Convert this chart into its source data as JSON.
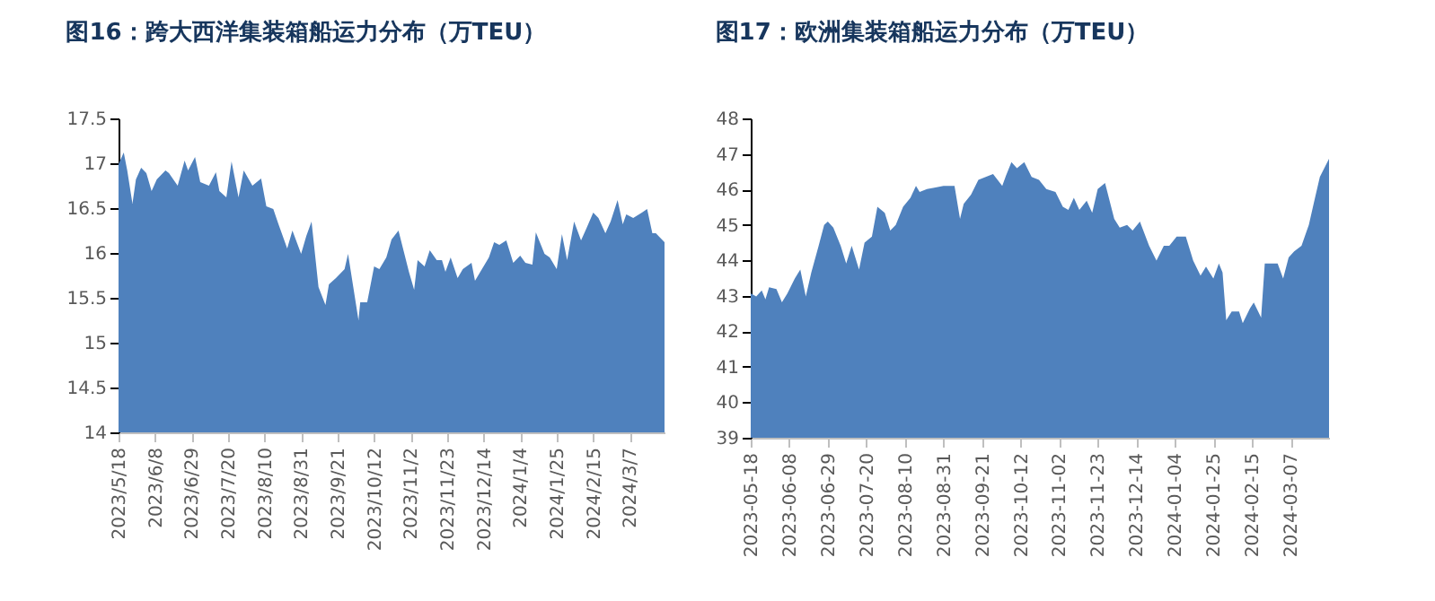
{
  "chart_data": [
    {
      "type": "area",
      "title": "图16：跨大西洋集装箱船运力分布（万TEU）",
      "color": "#4f81bd",
      "x": [
        "2023-05-18",
        "2023-05-21",
        "2023-05-23",
        "2023-05-26",
        "2023-05-28",
        "2023-05-31",
        "2023-06-03",
        "2023-06-06",
        "2023-06-09",
        "2023-06-14",
        "2023-06-16",
        "2023-06-21",
        "2023-06-25",
        "2023-06-27",
        "2023-07-01",
        "2023-07-04",
        "2023-07-09",
        "2023-07-13",
        "2023-07-15",
        "2023-07-19",
        "2023-07-22",
        "2023-07-26",
        "2023-07-29",
        "2023-08-03",
        "2023-08-08",
        "2023-08-11",
        "2023-08-15",
        "2023-08-18",
        "2023-08-23",
        "2023-08-26",
        "2023-08-31",
        "2023-09-03",
        "2023-09-06",
        "2023-09-10",
        "2023-09-14",
        "2023-09-16",
        "2023-09-20",
        "2023-09-25",
        "2023-09-27",
        "2023-09-30",
        "2023-10-03",
        "2023-10-04",
        "2023-10-08",
        "2023-10-12",
        "2023-10-15",
        "2023-10-19",
        "2023-10-22",
        "2023-10-26",
        "2023-10-29",
        "2023-11-01",
        "2023-11-04",
        "2023-11-06",
        "2023-11-10",
        "2023-11-13",
        "2023-11-17",
        "2023-11-20",
        "2023-11-22",
        "2023-11-25",
        "2023-11-29",
        "2023-12-02",
        "2023-12-07",
        "2023-12-09",
        "2023-12-13",
        "2023-12-17",
        "2023-12-20",
        "2023-12-23",
        "2023-12-27",
        "2023-12-31",
        "2024-01-04",
        "2024-01-07",
        "2024-01-11",
        "2024-01-13",
        "2024-01-18",
        "2024-01-21",
        "2024-01-25",
        "2024-01-28",
        "2024-01-31",
        "2024-02-04",
        "2024-02-08",
        "2024-02-11",
        "2024-02-15",
        "2024-02-18",
        "2024-02-22",
        "2024-02-25",
        "2024-02-29",
        "2024-03-03",
        "2024-03-05",
        "2024-03-09",
        "2024-03-14",
        "2024-03-17",
        "2024-03-20",
        "2024-03-22",
        "2024-03-27"
      ],
      "values": [
        16.99,
        17.12,
        16.92,
        16.55,
        16.82,
        16.95,
        16.89,
        16.69,
        16.82,
        16.92,
        16.89,
        16.75,
        17.03,
        16.92,
        17.07,
        16.79,
        16.75,
        16.9,
        16.69,
        16.62,
        17.02,
        16.62,
        16.92,
        16.75,
        16.83,
        16.52,
        16.49,
        16.32,
        16.05,
        16.25,
        15.99,
        16.19,
        16.35,
        15.62,
        15.42,
        15.65,
        15.72,
        15.82,
        15.99,
        15.62,
        15.25,
        15.45,
        15.45,
        15.85,
        15.82,
        15.95,
        16.15,
        16.25,
        16.02,
        15.79,
        15.59,
        15.92,
        15.85,
        16.03,
        15.92,
        15.92,
        15.79,
        15.95,
        15.72,
        15.82,
        15.89,
        15.69,
        15.82,
        15.95,
        16.12,
        16.09,
        16.14,
        15.89,
        15.97,
        15.89,
        15.87,
        16.23,
        15.99,
        15.95,
        15.82,
        16.21,
        15.92,
        16.35,
        16.14,
        16.27,
        16.45,
        16.39,
        16.22,
        16.35,
        16.59,
        16.32,
        16.43,
        16.39,
        16.45,
        16.49,
        16.22,
        16.22,
        16.12
      ],
      "xlim": [
        "2023-05-18",
        "2024-03-27"
      ],
      "xticks": [
        {
          "value": "2023-05-18",
          "label": "2023/5/18"
        },
        {
          "value": "2023-06-08",
          "label": "2023/6/8"
        },
        {
          "value": "2023-06-29",
          "label": "2023/6/29"
        },
        {
          "value": "2023-07-20",
          "label": "2023/7/20"
        },
        {
          "value": "2023-08-10",
          "label": "2023/8/10"
        },
        {
          "value": "2023-08-31",
          "label": "2023/8/31"
        },
        {
          "value": "2023-09-21",
          "label": "2023/9/21"
        },
        {
          "value": "2023-10-12",
          "label": "2023/10/12"
        },
        {
          "value": "2023-11-02",
          "label": "2023/11/2"
        },
        {
          "value": "2023-11-23",
          "label": "2023/11/23"
        },
        {
          "value": "2023-12-14",
          "label": "2023/12/14"
        },
        {
          "value": "2024-01-04",
          "label": "2024/1/4"
        },
        {
          "value": "2024-01-25",
          "label": "2024/1/25"
        },
        {
          "value": "2024-02-15",
          "label": "2024/2/15"
        },
        {
          "value": "2024-03-07",
          "label": "2024/3/7"
        }
      ],
      "ylim": [
        14,
        17.5
      ],
      "yticks": [
        14,
        14.5,
        15,
        15.5,
        16,
        16.5,
        17,
        17.5
      ],
      "grid": false
    },
    {
      "type": "area",
      "title": "图17：欧洲集装箱船运力分布（万TEU）",
      "color": "#4f81bd",
      "x": [
        "2023-05-18",
        "2023-05-21",
        "2023-05-24",
        "2023-05-26",
        "2023-05-28",
        "2023-06-01",
        "2023-06-04",
        "2023-06-07",
        "2023-06-11",
        "2023-06-14",
        "2023-06-17",
        "2023-06-20",
        "2023-06-24",
        "2023-06-27",
        "2023-06-29",
        "2023-07-02",
        "2023-07-06",
        "2023-07-09",
        "2023-07-12",
        "2023-07-16",
        "2023-07-19",
        "2023-07-23",
        "2023-07-26",
        "2023-07-30",
        "2023-08-02",
        "2023-08-05",
        "2023-08-09",
        "2023-08-13",
        "2023-08-16",
        "2023-08-18",
        "2023-08-22",
        "2023-08-26",
        "2023-08-31",
        "2023-09-06",
        "2023-09-09",
        "2023-09-11",
        "2023-09-15",
        "2023-09-19",
        "2023-09-23",
        "2023-09-27",
        "2023-10-02",
        "2023-10-04",
        "2023-10-07",
        "2023-10-10",
        "2023-10-14",
        "2023-10-18",
        "2023-10-22",
        "2023-10-26",
        "2023-10-31",
        "2023-11-04",
        "2023-11-07",
        "2023-11-10",
        "2023-11-13",
        "2023-11-17",
        "2023-11-20",
        "2023-11-23",
        "2023-11-27",
        "2023-12-02",
        "2023-12-05",
        "2023-12-09",
        "2023-12-12",
        "2023-12-16",
        "2023-12-21",
        "2023-12-25",
        "2023-12-29",
        "2024-01-01",
        "2024-01-05",
        "2024-01-10",
        "2024-01-14",
        "2024-01-18",
        "2024-01-21",
        "2024-01-25",
        "2024-01-28",
        "2024-01-30",
        "2024-02-01",
        "2024-02-04",
        "2024-02-08",
        "2024-02-10",
        "2024-02-14",
        "2024-02-16",
        "2024-02-20",
        "2024-02-22",
        "2024-02-25",
        "2024-02-29",
        "2024-03-03",
        "2024-03-06",
        "2024-03-09",
        "2024-03-13",
        "2024-03-17",
        "2024-03-20",
        "2024-03-23",
        "2024-03-28"
      ],
      "values": [
        43.07,
        42.98,
        43.15,
        42.9,
        43.24,
        43.19,
        42.82,
        43.07,
        43.49,
        43.74,
        42.98,
        43.66,
        44.41,
        45.0,
        45.09,
        44.92,
        44.41,
        43.91,
        44.41,
        43.74,
        44.5,
        44.67,
        45.51,
        45.34,
        44.84,
        45.0,
        45.51,
        45.76,
        46.1,
        45.93,
        46.01,
        46.05,
        46.1,
        46.1,
        45.17,
        45.59,
        45.85,
        46.27,
        46.35,
        46.43,
        46.1,
        46.38,
        46.77,
        46.6,
        46.77,
        46.35,
        46.27,
        46.01,
        45.93,
        45.51,
        45.42,
        45.76,
        45.42,
        45.68,
        45.34,
        46.01,
        46.18,
        45.17,
        44.92,
        45.0,
        44.84,
        45.09,
        44.41,
        43.99,
        44.41,
        44.41,
        44.67,
        44.67,
        43.99,
        43.57,
        43.82,
        43.49,
        43.91,
        43.66,
        42.31,
        42.56,
        42.56,
        42.23,
        42.65,
        42.81,
        42.39,
        43.91,
        43.91,
        43.91,
        43.49,
        44.08,
        44.25,
        44.41,
        45.0,
        45.68,
        46.35,
        46.86
      ],
      "xlim": [
        "2023-05-18",
        "2024-03-28"
      ],
      "xticks": [
        {
          "value": "2023-05-18",
          "label": "2023-05-18"
        },
        {
          "value": "2023-06-08",
          "label": "2023-06-08"
        },
        {
          "value": "2023-06-29",
          "label": "2023-06-29"
        },
        {
          "value": "2023-07-20",
          "label": "2023-07-20"
        },
        {
          "value": "2023-08-10",
          "label": "2023-08-10"
        },
        {
          "value": "2023-08-31",
          "label": "2023-08-31"
        },
        {
          "value": "2023-09-21",
          "label": "2023-09-21"
        },
        {
          "value": "2023-10-12",
          "label": "2023-10-12"
        },
        {
          "value": "2023-11-02",
          "label": "2023-11-02"
        },
        {
          "value": "2023-11-23",
          "label": "2023-11-23"
        },
        {
          "value": "2023-12-14",
          "label": "2023-12-14"
        },
        {
          "value": "2024-01-04",
          "label": "2024-01-04"
        },
        {
          "value": "2024-01-25",
          "label": "2024-01-25"
        },
        {
          "value": "2024-02-15",
          "label": "2024-02-15"
        },
        {
          "value": "2024-03-07",
          "label": "2024-03-07"
        }
      ],
      "ylim": [
        39,
        48
      ],
      "yticks": [
        39,
        40,
        41,
        42,
        43,
        44,
        45,
        46,
        47,
        48
      ],
      "grid": false
    }
  ]
}
